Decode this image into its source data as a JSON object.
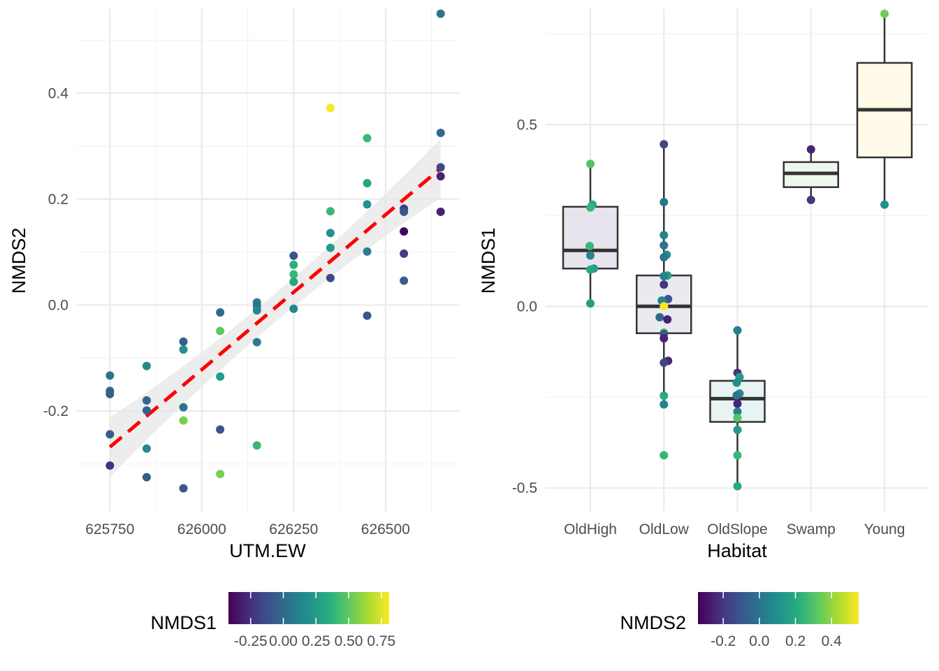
{
  "chart_data": [
    {
      "type": "scatter",
      "title": "",
      "xlabel": "UTM.EW",
      "ylabel": "NMDS2",
      "x_ticks": [
        "625750",
        "626000",
        "626250",
        "626500"
      ],
      "y_ticks": [
        "-0.2",
        "0.0",
        "0.2",
        "0.4"
      ],
      "xlim": [
        625660,
        626700
      ],
      "ylim": [
        -0.39,
        0.56
      ],
      "grid": true,
      "color_by": "NMDS1",
      "smooth": {
        "method": "lm",
        "color": "#ff0000",
        "linetype": "dashed",
        "band_color": "#e6e6e6",
        "x": [
          625750,
          626650
        ],
        "y": [
          -0.268,
          0.258
        ]
      },
      "points": [
        {
          "x": 625750,
          "y": -0.133,
          "c": 0.05
        },
        {
          "x": 625750,
          "y": -0.162,
          "c": 0.0
        },
        {
          "x": 625750,
          "y": -0.168,
          "c": -0.05
        },
        {
          "x": 625750,
          "y": -0.244,
          "c": -0.05
        },
        {
          "x": 625750,
          "y": -0.303,
          "c": -0.25
        },
        {
          "x": 625850,
          "y": -0.115,
          "c": 0.15
        },
        {
          "x": 625850,
          "y": -0.18,
          "c": 0.0
        },
        {
          "x": 625850,
          "y": -0.199,
          "c": -0.05
        },
        {
          "x": 625850,
          "y": -0.271,
          "c": 0.15
        },
        {
          "x": 625850,
          "y": -0.325,
          "c": -0.05
        },
        {
          "x": 625950,
          "y": -0.069,
          "c": -0.05
        },
        {
          "x": 625950,
          "y": -0.084,
          "c": 0.2
        },
        {
          "x": 625950,
          "y": -0.193,
          "c": 0.05
        },
        {
          "x": 625950,
          "y": -0.218,
          "c": 0.55
        },
        {
          "x": 625950,
          "y": -0.346,
          "c": -0.1
        },
        {
          "x": 626050,
          "y": -0.014,
          "c": 0.0
        },
        {
          "x": 626050,
          "y": -0.049,
          "c": 0.5
        },
        {
          "x": 626050,
          "y": -0.135,
          "c": 0.25
        },
        {
          "x": 626050,
          "y": -0.235,
          "c": -0.1
        },
        {
          "x": 626050,
          "y": -0.319,
          "c": 0.55
        },
        {
          "x": 626150,
          "y": 0.005,
          "c": 0.1
        },
        {
          "x": 626150,
          "y": -0.002,
          "c": 0.05
        },
        {
          "x": 626150,
          "y": -0.01,
          "c": 0.15
        },
        {
          "x": 626150,
          "y": -0.07,
          "c": 0.1
        },
        {
          "x": 626150,
          "y": -0.265,
          "c": 0.4
        },
        {
          "x": 626250,
          "y": 0.093,
          "c": -0.1
        },
        {
          "x": 626250,
          "y": 0.076,
          "c": 0.35
        },
        {
          "x": 626250,
          "y": 0.058,
          "c": 0.4
        },
        {
          "x": 626250,
          "y": 0.044,
          "c": 0.3
        },
        {
          "x": 626250,
          "y": -0.007,
          "c": 0.15
        },
        {
          "x": 626350,
          "y": 0.372,
          "c": 0.8
        },
        {
          "x": 626350,
          "y": 0.177,
          "c": 0.4
        },
        {
          "x": 626350,
          "y": 0.136,
          "c": 0.2
        },
        {
          "x": 626350,
          "y": 0.108,
          "c": 0.25
        },
        {
          "x": 626350,
          "y": 0.051,
          "c": -0.15
        },
        {
          "x": 626450,
          "y": 0.315,
          "c": 0.4
        },
        {
          "x": 626450,
          "y": 0.23,
          "c": 0.3
        },
        {
          "x": 626450,
          "y": 0.19,
          "c": 0.2
        },
        {
          "x": 626450,
          "y": 0.101,
          "c": 0.1
        },
        {
          "x": 626450,
          "y": -0.02,
          "c": -0.1
        },
        {
          "x": 626550,
          "y": 0.182,
          "c": -0.2
        },
        {
          "x": 626550,
          "y": 0.176,
          "c": -0.1
        },
        {
          "x": 626550,
          "y": 0.139,
          "c": -0.4
        },
        {
          "x": 626550,
          "y": 0.097,
          "c": -0.2
        },
        {
          "x": 626550,
          "y": 0.046,
          "c": -0.05
        },
        {
          "x": 626650,
          "y": 0.55,
          "c": 0.05
        },
        {
          "x": 626650,
          "y": 0.325,
          "c": 0.0
        },
        {
          "x": 626650,
          "y": 0.26,
          "c": -0.15
        },
        {
          "x": 626650,
          "y": 0.243,
          "c": -0.3
        },
        {
          "x": 626650,
          "y": 0.176,
          "c": -0.3
        }
      ],
      "legend": {
        "title": "NMDS1",
        "position": "bottom",
        "range": [
          -0.42,
          0.81
        ],
        "tick_values": [
          -0.25,
          0.0,
          0.25,
          0.5,
          0.75
        ],
        "tick_labels": [
          "-0.25",
          "0.00",
          "0.25",
          "0.50",
          "0.75"
        ],
        "palette": "viridis"
      }
    },
    {
      "type": "box",
      "title": "",
      "xlabel": "Habitat",
      "ylabel": "NMDS1",
      "categories": [
        "OldHigh",
        "OldLow",
        "OldSlope",
        "Swamp",
        "Young"
      ],
      "y_ticks": [
        "-0.5",
        "0.0",
        "0.5"
      ],
      "ylim": [
        -0.565,
        0.82
      ],
      "grid": true,
      "color_by": "NMDS2",
      "boxes": [
        {
          "category": "OldHigh",
          "q1": 0.104,
          "median": 0.154,
          "q3": 0.274,
          "whisker_low": 0.008,
          "whisker_high": 0.392,
          "fill": "#e8e4ee"
        },
        {
          "category": "OldLow",
          "q1": -0.074,
          "median": 0.0,
          "q3": 0.085,
          "whisker_low": -0.27,
          "whisker_high": 0.446,
          "fill": "#e9ebf1"
        },
        {
          "category": "OldSlope",
          "q1": -0.318,
          "median": -0.254,
          "q3": -0.205,
          "whisker_low": -0.495,
          "whisker_high": -0.066,
          "fill": "#e8f3f3"
        },
        {
          "category": "Swamp",
          "q1": 0.328,
          "median": 0.366,
          "q3": 0.397,
          "whisker_low": 0.293,
          "whisker_high": 0.432,
          "fill": "#eef9ee"
        },
        {
          "category": "Young",
          "q1": 0.41,
          "median": 0.541,
          "q3": 0.67,
          "whisker_low": 0.28,
          "whisker_high": 0.805,
          "fill": "#fffbe8"
        }
      ],
      "points": [
        {
          "cat": 0,
          "y": 0.392,
          "c": 0.3,
          "dx": 0
        },
        {
          "cat": 0,
          "y": 0.28,
          "c": 0.2,
          "dx": 3
        },
        {
          "cat": 0,
          "y": 0.272,
          "c": 0.25,
          "dx": 0
        },
        {
          "cat": 0,
          "y": 0.166,
          "c": 0.25,
          "dx": -1
        },
        {
          "cat": 0,
          "y": 0.14,
          "c": 0.05,
          "dx": 0
        },
        {
          "cat": 0,
          "y": 0.104,
          "c": 0.15,
          "dx": 5
        },
        {
          "cat": 0,
          "y": 0.101,
          "c": 0.2,
          "dx": 0
        },
        {
          "cat": 0,
          "y": 0.008,
          "c": 0.15,
          "dx": 0
        },
        {
          "cat": 1,
          "y": 0.446,
          "c": -0.15,
          "dx": 0
        },
        {
          "cat": 1,
          "y": 0.287,
          "c": 0.0,
          "dx": 0
        },
        {
          "cat": 1,
          "y": 0.196,
          "c": 0.05,
          "dx": 0
        },
        {
          "cat": 1,
          "y": 0.168,
          "c": 0.0,
          "dx": 0
        },
        {
          "cat": 1,
          "y": 0.142,
          "c": 0.1,
          "dx": 4
        },
        {
          "cat": 1,
          "y": 0.135,
          "c": 0.0,
          "dx": 0
        },
        {
          "cat": 1,
          "y": 0.085,
          "c": 0.15,
          "dx": 5
        },
        {
          "cat": 1,
          "y": 0.083,
          "c": 0.05,
          "dx": 0
        },
        {
          "cat": 1,
          "y": 0.06,
          "c": -0.2,
          "dx": 0
        },
        {
          "cat": 1,
          "y": 0.02,
          "c": -0.1,
          "dx": 6
        },
        {
          "cat": 1,
          "y": 0.016,
          "c": 0.05,
          "dx": -3
        },
        {
          "cat": 1,
          "y": 0.0,
          "c": 0.55,
          "dx": 0
        },
        {
          "cat": 1,
          "y": -0.03,
          "c": -0.05,
          "dx": -6
        },
        {
          "cat": 1,
          "y": -0.036,
          "c": -0.25,
          "dx": 5
        },
        {
          "cat": 1,
          "y": -0.072,
          "c": 0.3,
          "dx": 0
        },
        {
          "cat": 1,
          "y": -0.076,
          "c": -0.1,
          "dx": 0
        },
        {
          "cat": 1,
          "y": -0.088,
          "c": -0.25,
          "dx": 0
        },
        {
          "cat": 1,
          "y": -0.15,
          "c": -0.25,
          "dx": 6
        },
        {
          "cat": 1,
          "y": -0.155,
          "c": -0.15,
          "dx": 0
        },
        {
          "cat": 1,
          "y": -0.246,
          "c": 0.2,
          "dx": 0
        },
        {
          "cat": 1,
          "y": -0.27,
          "c": 0.05,
          "dx": 0
        },
        {
          "cat": 1,
          "y": -0.41,
          "c": 0.25,
          "dx": 0
        },
        {
          "cat": 2,
          "y": -0.066,
          "c": 0.05,
          "dx": 0
        },
        {
          "cat": 2,
          "y": -0.183,
          "c": -0.2,
          "dx": 0
        },
        {
          "cat": 2,
          "y": -0.195,
          "c": 0.15,
          "dx": 3
        },
        {
          "cat": 2,
          "y": -0.21,
          "c": 0.1,
          "dx": -1
        },
        {
          "cat": 2,
          "y": -0.24,
          "c": 0.1,
          "dx": 3
        },
        {
          "cat": 2,
          "y": -0.245,
          "c": 0.0,
          "dx": -1
        },
        {
          "cat": 2,
          "y": -0.268,
          "c": -0.25,
          "dx": 0
        },
        {
          "cat": 2,
          "y": -0.29,
          "c": 0.05,
          "dx": 0
        },
        {
          "cat": 2,
          "y": -0.307,
          "c": 0.3,
          "dx": 0
        },
        {
          "cat": 2,
          "y": -0.34,
          "c": 0.15,
          "dx": 0
        },
        {
          "cat": 2,
          "y": -0.41,
          "c": 0.25,
          "dx": 0
        },
        {
          "cat": 2,
          "y": -0.495,
          "c": 0.2,
          "dx": 0
        },
        {
          "cat": 3,
          "y": 0.432,
          "c": -0.25,
          "dx": 0
        },
        {
          "cat": 3,
          "y": 0.293,
          "c": -0.2,
          "dx": 0
        },
        {
          "cat": 4,
          "y": 0.805,
          "c": 0.35,
          "dx": 0
        },
        {
          "cat": 4,
          "y": 0.28,
          "c": 0.1,
          "dx": 0
        }
      ],
      "legend": {
        "title": "NMDS2",
        "position": "bottom",
        "range": [
          -0.34,
          0.55
        ],
        "tick_values": [
          -0.2,
          0.0,
          0.2,
          0.4
        ],
        "tick_labels": [
          "-0.2",
          "0.0",
          "0.2",
          "0.4"
        ],
        "palette": "viridis"
      }
    }
  ]
}
